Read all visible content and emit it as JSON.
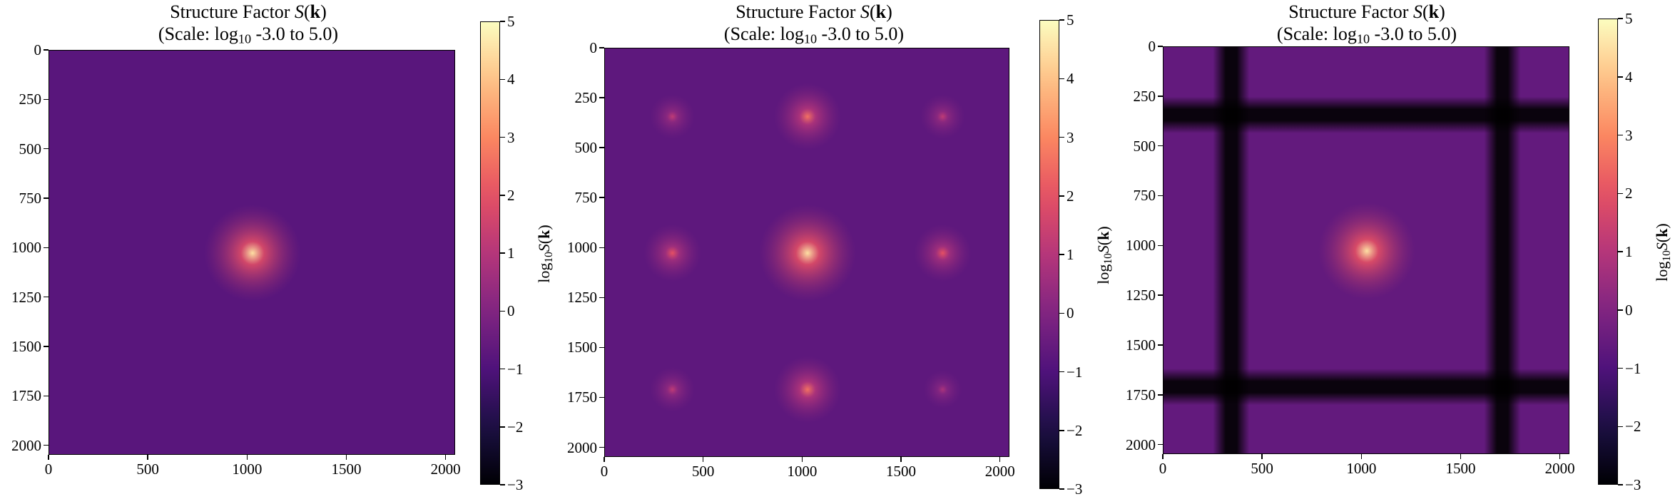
{
  "chart_data": [
    {
      "type": "heatmap",
      "title_line1_prefix": "Structure Factor ",
      "title_line2_prefix": "(Scale: log",
      "title_line2_suffix": " -3.0 to 5.0)",
      "x_ticks": [
        "0",
        "500",
        "1000",
        "1500",
        "2000"
      ],
      "y_ticks": [
        "0",
        "250",
        "500",
        "750",
        "1000",
        "1250",
        "1500",
        "1750",
        "2000"
      ],
      "colorbar_ticks": [
        "5",
        "4",
        "3",
        "2",
        "1",
        "0",
        "−1",
        "−2",
        "−3"
      ],
      "colorbar_label_prefix": "log",
      "colorbar_range": [
        -3,
        5
      ],
      "xlim": [
        0,
        2048
      ],
      "ylim": [
        2048,
        0
      ],
      "colormap": "magma",
      "background_log10": -0.8,
      "peaks": [
        {
          "x": 1024,
          "y": 1024,
          "log10_value": 4.5
        }
      ],
      "dark_bands_x": [],
      "dark_bands_y": []
    },
    {
      "type": "heatmap",
      "title_line1_prefix": "Structure Factor ",
      "title_line2_prefix": "(Scale: log",
      "title_line2_suffix": " -3.0 to 5.0)",
      "x_ticks": [
        "0",
        "500",
        "1000",
        "1500",
        "2000"
      ],
      "y_ticks": [
        "0",
        "250",
        "500",
        "750",
        "1000",
        "1250",
        "1500",
        "1750",
        "2000"
      ],
      "colorbar_ticks": [
        "5",
        "4",
        "3",
        "2",
        "1",
        "0",
        "−1",
        "−2",
        "−3"
      ],
      "colorbar_label_prefix": "log",
      "colorbar_range": [
        -3,
        5
      ],
      "xlim": [
        0,
        2048
      ],
      "ylim": [
        2048,
        0
      ],
      "colormap": "magma",
      "background_log10": -0.7,
      "peaks": [
        {
          "x": 1024,
          "y": 1024,
          "log10_value": 4.5
        },
        {
          "x": 1024,
          "y": 341,
          "log10_value": 2.6
        },
        {
          "x": 1024,
          "y": 1707,
          "log10_value": 2.6
        },
        {
          "x": 341,
          "y": 1024,
          "log10_value": 2.0
        },
        {
          "x": 1707,
          "y": 1024,
          "log10_value": 2.0
        },
        {
          "x": 341,
          "y": 341,
          "log10_value": 1.2
        },
        {
          "x": 1707,
          "y": 341,
          "log10_value": 1.2
        },
        {
          "x": 341,
          "y": 1707,
          "log10_value": 1.2
        },
        {
          "x": 1707,
          "y": 1707,
          "log10_value": 0.8
        }
      ],
      "dark_bands_x": [],
      "dark_bands_y": []
    },
    {
      "type": "heatmap",
      "title_line1_prefix": "Structure Factor ",
      "title_line2_prefix": "(Scale: log",
      "title_line2_suffix": " -3.0 to 5.0)",
      "x_ticks": [
        "0",
        "500",
        "1000",
        "1500",
        "2000"
      ],
      "y_ticks": [
        "0",
        "250",
        "500",
        "750",
        "1000",
        "1250",
        "1500",
        "1750",
        "2000"
      ],
      "colorbar_ticks": [
        "5",
        "4",
        "3",
        "2",
        "1",
        "0",
        "−1",
        "−2",
        "−3"
      ],
      "colorbar_label_prefix": "log",
      "colorbar_range": [
        -3,
        5
      ],
      "xlim": [
        0,
        2048
      ],
      "ylim": [
        2048,
        0
      ],
      "colormap": "magma",
      "background_log10": -0.6,
      "peaks": [
        {
          "x": 1024,
          "y": 1024,
          "log10_value": 4.5
        }
      ],
      "dark_bands_x": [
        341,
        1707
      ],
      "dark_bands_y": [
        341,
        1707
      ]
    }
  ]
}
